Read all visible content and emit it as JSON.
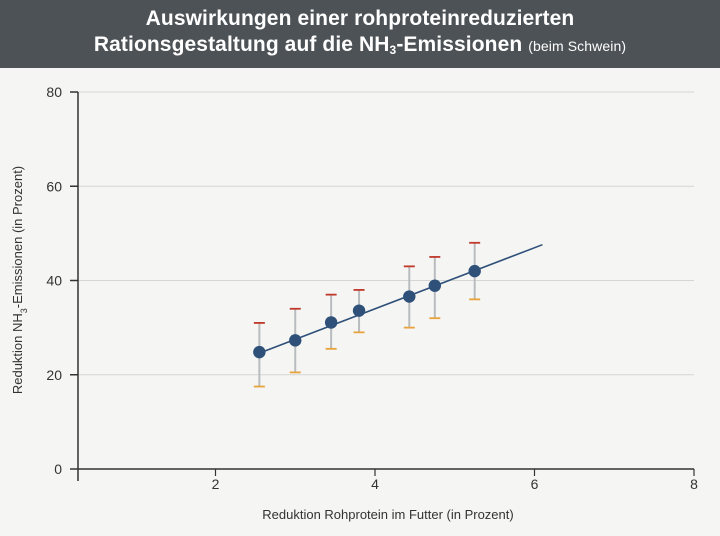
{
  "header": {
    "title_line1": "Auswirkungen einer rohproteinreduzierten",
    "title_line2_prefix": "Rationsgestaltung auf die NH",
    "title_line2_sub": "3",
    "title_line2_suffix": "-Emissionen",
    "subtitle": "(beim Schwein)"
  },
  "colors": {
    "header_bg": "#4d5256",
    "point": "#2e5079",
    "trend_line": "#2e5079",
    "error_bar": "#b9bcbf",
    "upper_cap": "#c0392b",
    "lower_cap": "#e8a33b",
    "grid": "#d4d6d6",
    "axis": "#333333"
  },
  "chart_data": {
    "type": "scatter",
    "title": "Auswirkungen einer rohproteinreduzierten Rationsgestaltung auf die NH3-Emissionen (beim Schwein)",
    "xlabel": "Reduktion Rohprotein im Futter (in Prozent)",
    "ylabel_prefix": "Reduktion NH",
    "ylabel_sub": "3",
    "ylabel_suffix": "-Emissionen (in Prozent)",
    "xlim": [
      0,
      8
    ],
    "ylim": [
      0,
      80
    ],
    "xticks": [
      2,
      4,
      6,
      8
    ],
    "yticks": [
      0,
      20,
      40,
      60,
      80
    ],
    "grid": "horizontal",
    "points": [
      {
        "x": 2.55,
        "y": 24.8,
        "upper": 31,
        "lower": 17.5
      },
      {
        "x": 3.0,
        "y": 27.3,
        "upper": 34,
        "lower": 20.5
      },
      {
        "x": 3.45,
        "y": 31.1,
        "upper": 37,
        "lower": 25.5
      },
      {
        "x": 3.8,
        "y": 33.6,
        "upper": 38,
        "lower": 29.0
      },
      {
        "x": 4.43,
        "y": 36.6,
        "upper": 43,
        "lower": 30.0
      },
      {
        "x": 4.75,
        "y": 38.9,
        "upper": 45,
        "lower": 32.0
      },
      {
        "x": 5.25,
        "y": 42.0,
        "upper": 48,
        "lower": 36.0
      }
    ],
    "trend_line": {
      "x_start": 2.55,
      "y_start": 24.6,
      "x_end": 6.1,
      "y_end": 47.6
    }
  }
}
